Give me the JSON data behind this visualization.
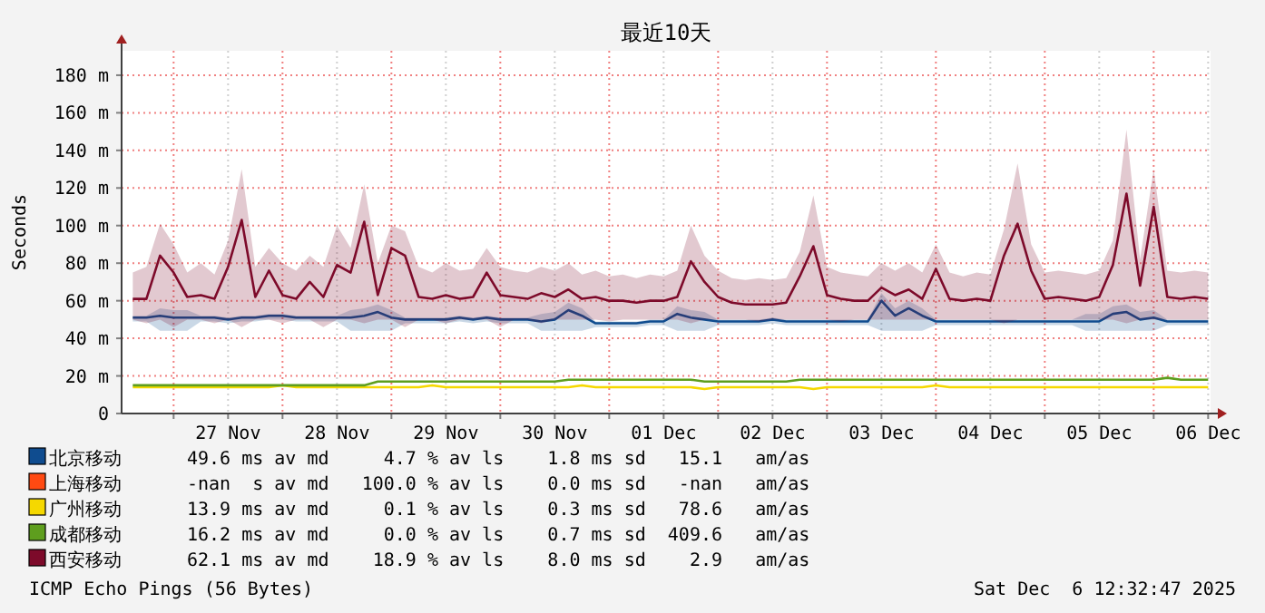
{
  "chart_data": {
    "type": "line",
    "title": "最近10天",
    "ylabel": "Seconds",
    "legend": "bottom",
    "grid": true,
    "xlim": [
      "2025-11-26T12:32",
      "2025-12-06T12:32"
    ],
    "ylim": [
      0,
      193
    ],
    "xticks": [
      {
        "value": "2025-11-27T00:00",
        "label": null
      },
      {
        "value": "2025-11-27T12:00",
        "label": "27 Nov"
      },
      {
        "value": "2025-11-28T00:00",
        "label": null
      },
      {
        "value": "2025-11-28T12:00",
        "label": "28 Nov"
      },
      {
        "value": "2025-11-29T00:00",
        "label": null
      },
      {
        "value": "2025-11-29T12:00",
        "label": "29 Nov"
      },
      {
        "value": "2025-11-30T00:00",
        "label": null
      },
      {
        "value": "2025-11-30T12:00",
        "label": "30 Nov"
      },
      {
        "value": "2025-12-01T00:00",
        "label": null
      },
      {
        "value": "2025-12-01T12:00",
        "label": "01 Dec"
      },
      {
        "value": "2025-12-02T00:00",
        "label": null
      },
      {
        "value": "2025-12-02T12:00",
        "label": "02 Dec"
      },
      {
        "value": "2025-12-03T00:00",
        "label": null
      },
      {
        "value": "2025-12-03T12:00",
        "label": "03 Dec"
      },
      {
        "value": "2025-12-04T00:00",
        "label": null
      },
      {
        "value": "2025-12-04T12:00",
        "label": "04 Dec"
      },
      {
        "value": "2025-12-05T00:00",
        "label": null
      },
      {
        "value": "2025-12-05T12:00",
        "label": "05 Dec"
      },
      {
        "value": "2025-12-06T00:00",
        "label": null
      },
      {
        "value": "2025-12-06T12:00",
        "label": "06 Dec"
      }
    ],
    "yticks": [
      0,
      {
        "value": 20,
        "label": "20 m"
      },
      {
        "value": 40,
        "label": "40 m"
      },
      {
        "value": 60,
        "label": "60 m"
      },
      {
        "value": 80,
        "label": "80 m"
      },
      {
        "value": 100,
        "label": "100 m"
      },
      {
        "value": 120,
        "label": "120 m"
      },
      {
        "value": 140,
        "label": "140 m"
      },
      {
        "value": 160,
        "label": "160 m"
      },
      {
        "value": 180,
        "label": "180 m"
      }
    ],
    "x": [
      "2025-11-26T15:00",
      "2025-11-26T18:00",
      "2025-11-26T21:00",
      "2025-11-27T00:00",
      "2025-11-27T03:00",
      "2025-11-27T06:00",
      "2025-11-27T09:00",
      "2025-11-27T12:00",
      "2025-11-27T15:00",
      "2025-11-27T18:00",
      "2025-11-27T21:00",
      "2025-11-28T00:00",
      "2025-11-28T03:00",
      "2025-11-28T06:00",
      "2025-11-28T09:00",
      "2025-11-28T12:00",
      "2025-11-28T15:00",
      "2025-11-28T18:00",
      "2025-11-28T21:00",
      "2025-11-29T00:00",
      "2025-11-29T03:00",
      "2025-11-29T06:00",
      "2025-11-29T09:00",
      "2025-11-29T12:00",
      "2025-11-29T15:00",
      "2025-11-29T18:00",
      "2025-11-29T21:00",
      "2025-11-30T00:00",
      "2025-11-30T03:00",
      "2025-11-30T06:00",
      "2025-11-30T09:00",
      "2025-11-30T12:00",
      "2025-11-30T15:00",
      "2025-11-30T18:00",
      "2025-11-30T21:00",
      "2025-12-01T00:00",
      "2025-12-01T03:00",
      "2025-12-01T06:00",
      "2025-12-01T09:00",
      "2025-12-01T12:00",
      "2025-12-01T15:00",
      "2025-12-01T18:00",
      "2025-12-01T21:00",
      "2025-12-02T00:00",
      "2025-12-02T03:00",
      "2025-12-02T06:00",
      "2025-12-02T09:00",
      "2025-12-02T12:00",
      "2025-12-02T15:00",
      "2025-12-02T18:00",
      "2025-12-02T21:00",
      "2025-12-03T00:00",
      "2025-12-03T03:00",
      "2025-12-03T06:00",
      "2025-12-03T09:00",
      "2025-12-03T12:00",
      "2025-12-03T15:00",
      "2025-12-03T18:00",
      "2025-12-03T21:00",
      "2025-12-04T00:00",
      "2025-12-04T03:00",
      "2025-12-04T06:00",
      "2025-12-04T09:00",
      "2025-12-04T12:00",
      "2025-12-04T15:00",
      "2025-12-04T18:00",
      "2025-12-04T21:00",
      "2025-12-05T00:00",
      "2025-12-05T03:00",
      "2025-12-05T06:00",
      "2025-12-05T09:00",
      "2025-12-05T12:00",
      "2025-12-05T15:00",
      "2025-12-05T18:00",
      "2025-12-05T21:00",
      "2025-12-06T00:00",
      "2025-12-06T03:00",
      "2025-12-06T06:00",
      "2025-12-06T09:00",
      "2025-12-06T12:00"
    ],
    "series": [
      {
        "name": "北京移动",
        "color": "#0f4c8f",
        "values": [
          51,
          51,
          52,
          51,
          51,
          51,
          51,
          50,
          51,
          51,
          52,
          52,
          51,
          51,
          51,
          51,
          51,
          52,
          54,
          51,
          50,
          50,
          50,
          50,
          51,
          50,
          51,
          50,
          50,
          50,
          49,
          50,
          55,
          52,
          48,
          48,
          48,
          48,
          49,
          49,
          53,
          51,
          50,
          49,
          49,
          49,
          49,
          50,
          49,
          49,
          49,
          49,
          49,
          49,
          49,
          60,
          52,
          56,
          52,
          49,
          49,
          49,
          49,
          49,
          49,
          49,
          49,
          49,
          49,
          49,
          49,
          49,
          53,
          54,
          50,
          51,
          49,
          49,
          49,
          49
        ],
        "lower": [
          49,
          49,
          44,
          44,
          44,
          49,
          49,
          48,
          49,
          49,
          50,
          50,
          49,
          49,
          49,
          49,
          44,
          44,
          44,
          44,
          48,
          48,
          48,
          48,
          49,
          48,
          49,
          48,
          48,
          48,
          44,
          44,
          44,
          44,
          46,
          46,
          46,
          46,
          47,
          47,
          44,
          44,
          44,
          47,
          47,
          47,
          47,
          48,
          47,
          47,
          47,
          47,
          47,
          47,
          47,
          44,
          44,
          44,
          44,
          47,
          47,
          47,
          47,
          47,
          47,
          47,
          47,
          47,
          47,
          47,
          44,
          44,
          44,
          44,
          44,
          44,
          47,
          47,
          47,
          47
        ],
        "upper": [
          52,
          52,
          56,
          55,
          55,
          52,
          52,
          51,
          52,
          52,
          53,
          53,
          52,
          52,
          52,
          52,
          55,
          56,
          58,
          55,
          51,
          51,
          51,
          51,
          52,
          51,
          52,
          51,
          51,
          51,
          53,
          54,
          59,
          56,
          49,
          49,
          49,
          49,
          50,
          50,
          57,
          55,
          54,
          50,
          50,
          50,
          50,
          51,
          50,
          50,
          50,
          50,
          50,
          50,
          50,
          64,
          56,
          60,
          56,
          50,
          50,
          50,
          50,
          50,
          50,
          50,
          50,
          50,
          50,
          50,
          53,
          53,
          57,
          58,
          54,
          55,
          50,
          50,
          50,
          50
        ]
      },
      {
        "name": "上海移动",
        "color": "#ff4a12",
        "values": [
          null,
          null,
          null,
          null,
          null,
          null,
          null,
          null,
          null,
          null,
          null,
          null,
          null,
          null,
          null,
          null,
          null,
          null,
          null,
          null,
          null,
          null,
          null,
          null,
          null,
          null,
          null,
          null,
          null,
          null,
          null,
          null,
          null,
          null,
          null,
          null,
          null,
          null,
          null,
          null,
          null,
          null,
          null,
          null,
          null,
          null,
          null,
          null,
          null,
          null,
          null,
          null,
          null,
          null,
          null,
          null,
          null,
          null,
          null,
          null,
          null,
          null,
          null,
          null,
          null,
          null,
          null,
          null,
          null,
          null,
          null,
          null,
          null,
          null,
          null,
          null,
          null,
          null,
          null,
          null
        ]
      },
      {
        "name": "广州移动",
        "color": "#f5d800",
        "values": [
          14,
          14,
          14,
          14,
          14,
          14,
          14,
          14,
          14,
          14,
          14,
          15,
          14,
          14,
          14,
          14,
          14,
          14,
          14,
          14,
          14,
          14,
          15,
          14,
          14,
          14,
          14,
          14,
          14,
          14,
          14,
          14,
          14,
          15,
          14,
          14,
          14,
          14,
          14,
          14,
          14,
          14,
          13,
          14,
          14,
          14,
          14,
          14,
          14,
          14,
          13,
          14,
          14,
          14,
          14,
          14,
          14,
          14,
          14,
          15,
          14,
          14,
          14,
          14,
          14,
          14,
          14,
          14,
          14,
          14,
          14,
          14,
          14,
          14,
          14,
          14,
          14,
          14,
          14,
          14
        ]
      },
      {
        "name": "成都移动",
        "color": "#5e9e1e",
        "values": [
          15,
          15,
          15,
          15,
          15,
          15,
          15,
          15,
          15,
          15,
          15,
          15,
          15,
          15,
          15,
          15,
          15,
          15,
          17,
          17,
          17,
          17,
          17,
          17,
          17,
          17,
          17,
          17,
          17,
          17,
          17,
          17,
          18,
          18,
          18,
          18,
          18,
          18,
          18,
          18,
          18,
          18,
          17,
          17,
          17,
          17,
          17,
          17,
          17,
          18,
          18,
          18,
          18,
          18,
          18,
          18,
          18,
          18,
          18,
          18,
          18,
          18,
          18,
          18,
          18,
          18,
          18,
          18,
          18,
          18,
          18,
          18,
          18,
          18,
          18,
          18,
          19,
          18,
          18,
          18
        ]
      },
      {
        "name": "西安移动",
        "color": "#7d0a2a",
        "values": [
          61,
          61,
          84,
          75,
          62,
          63,
          61,
          78,
          103,
          62,
          76,
          63,
          61,
          70,
          62,
          79,
          75,
          102,
          63,
          88,
          84,
          62,
          61,
          63,
          61,
          62,
          75,
          63,
          62,
          61,
          64,
          62,
          66,
          61,
          62,
          60,
          60,
          59,
          60,
          60,
          62,
          81,
          70,
          62,
          59,
          58,
          58,
          58,
          59,
          73,
          89,
          63,
          61,
          60,
          60,
          67,
          63,
          66,
          61,
          77,
          61,
          60,
          61,
          60,
          84,
          101,
          76,
          61,
          62,
          61,
          60,
          62,
          79,
          117,
          68,
          110,
          62,
          61,
          62,
          61
        ],
        "lower": [
          50,
          48,
          50,
          46,
          50,
          50,
          48,
          50,
          46,
          50,
          50,
          48,
          50,
          50,
          46,
          50,
          50,
          48,
          50,
          50,
          46,
          50,
          50,
          48,
          50,
          50,
          50,
          46,
          50,
          50,
          48,
          50,
          50,
          50,
          50,
          49,
          50,
          50,
          50,
          50,
          50,
          48,
          50,
          50,
          50,
          50,
          49,
          50,
          50,
          50,
          50,
          50,
          49,
          50,
          50,
          50,
          50,
          50,
          50,
          50,
          50,
          50,
          50,
          50,
          48,
          50,
          50,
          50,
          50,
          50,
          50,
          50,
          50,
          48,
          50,
          50,
          50,
          50,
          50,
          50
        ],
        "upper": [
          75,
          78,
          101,
          90,
          75,
          80,
          74,
          92,
          130,
          78,
          88,
          80,
          76,
          84,
          78,
          100,
          88,
          122,
          80,
          100,
          97,
          78,
          75,
          80,
          76,
          77,
          88,
          78,
          76,
          75,
          78,
          76,
          80,
          74,
          76,
          73,
          74,
          72,
          74,
          73,
          76,
          100,
          84,
          76,
          72,
          71,
          72,
          71,
          72,
          86,
          116,
          78,
          75,
          74,
          73,
          80,
          76,
          80,
          75,
          90,
          75,
          73,
          75,
          74,
          98,
          133,
          90,
          75,
          76,
          75,
          74,
          76,
          92,
          151,
          82,
          130,
          76,
          75,
          76,
          75
        ]
      }
    ],
    "annotations": [
      "49.6 ms av md     4.7 % av ls    1.8 ms sd   15.1   am/as",
      "-nan  s av md   100.0 % av ls    0.0 ms sd   -nan   am/as",
      "13.9 ms av md     0.1 % av ls    0.3 ms sd   78.6   am/as",
      "16.2 ms av md     0.0 % av ls    0.7 ms sd  409.6   am/as",
      "62.1 ms av md    18.9 % av ls    8.0 ms sd    2.9   am/as",
      "ICMP Echo Pings (56 Bytes)",
      "Sat Dec  6 12:32:47 2025"
    ]
  }
}
